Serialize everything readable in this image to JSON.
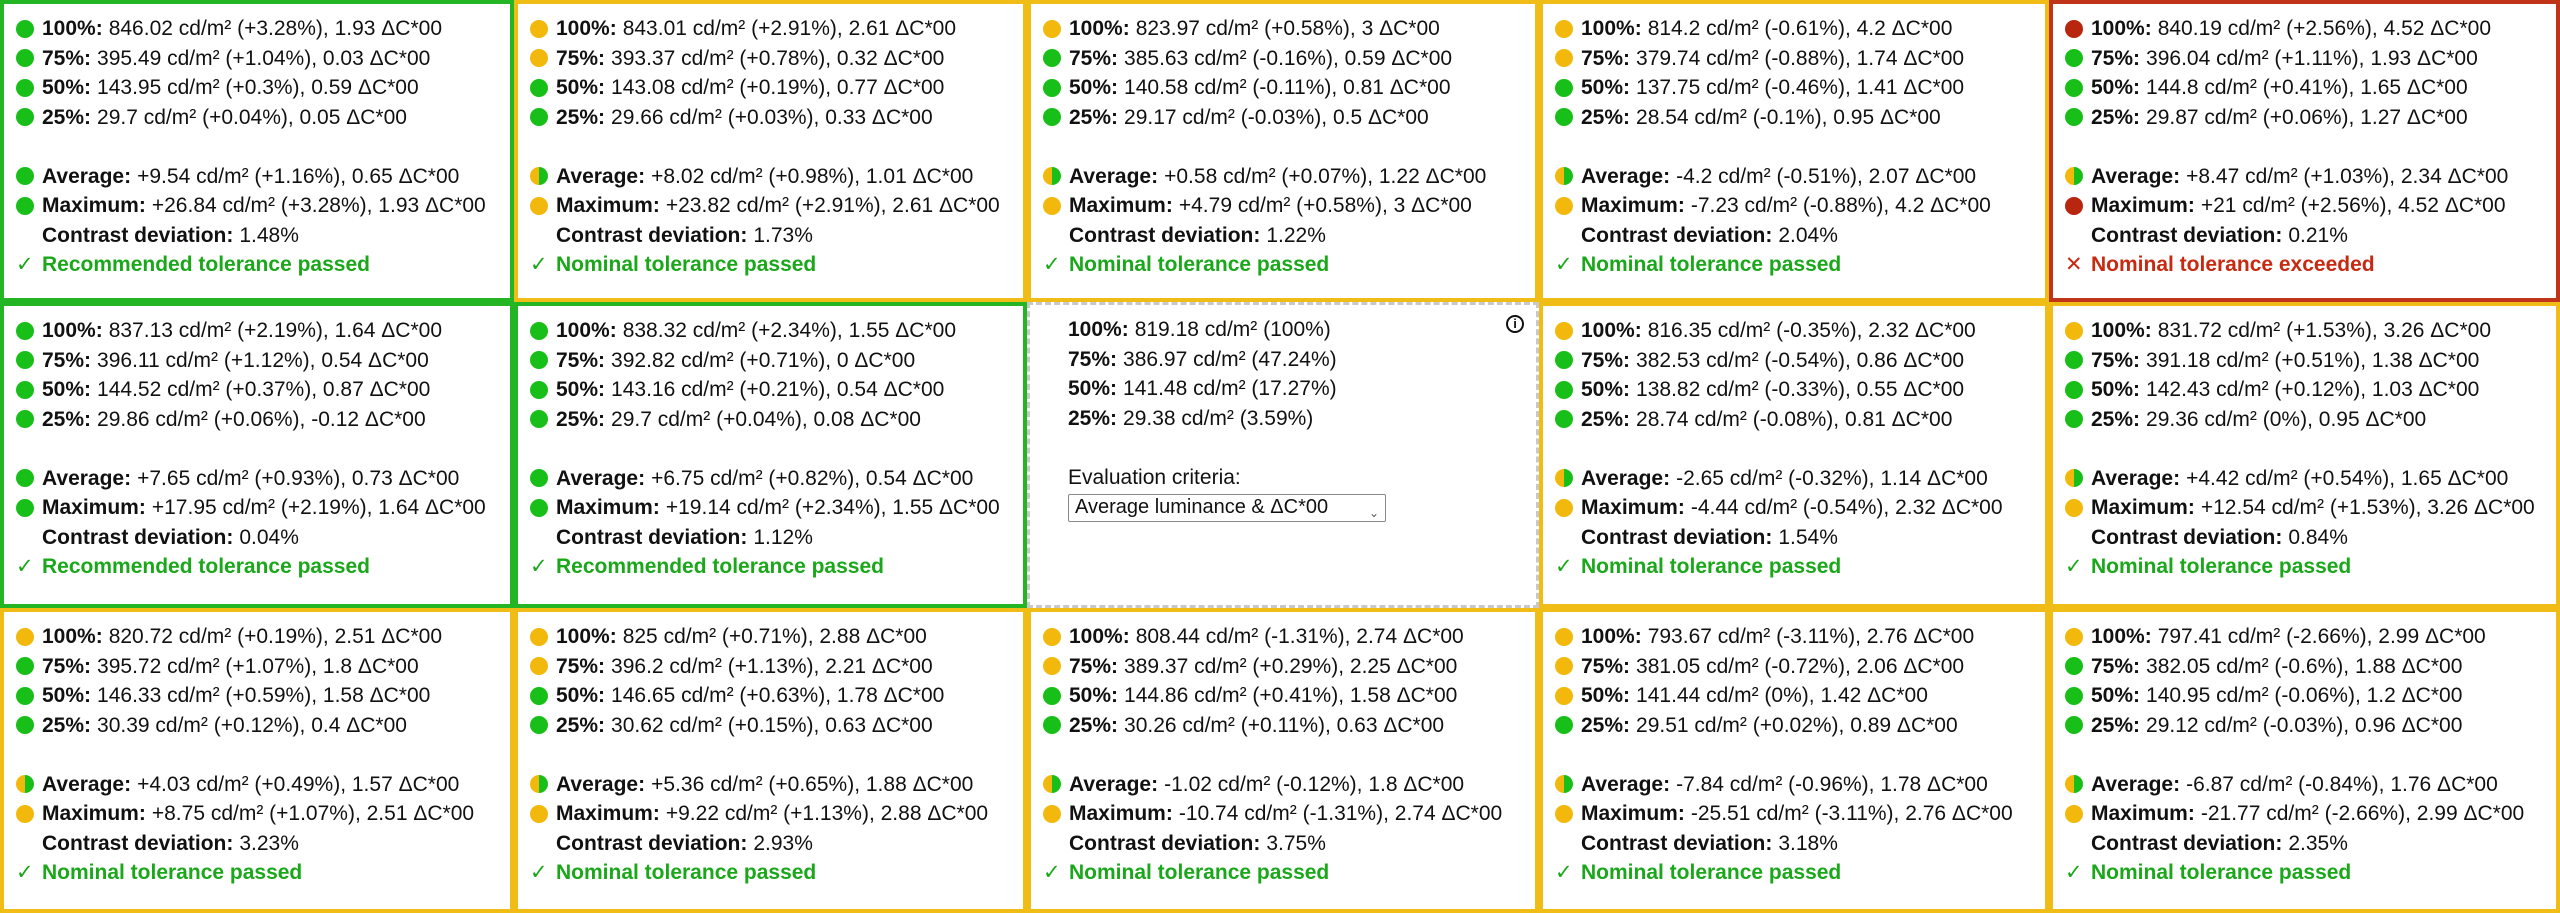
{
  "labels": {
    "p100": "100%:",
    "p75": "75%:",
    "p50": "50%:",
    "p25": "25%:",
    "average": "Average:",
    "maximum": "Maximum:",
    "contrast": "Contrast deviation:"
  },
  "icons": {
    "pass_mark": "✓",
    "fail_mark": "✕",
    "info": "i",
    "chevron": "⌄"
  },
  "colors": {
    "green": "#23b523",
    "yellow": "#efbd16",
    "red": "#c0341a",
    "pass_text": "#1aa81a",
    "fail_text": "#c72a10"
  },
  "reference": {
    "p100": "819.18 cd/m² (100%)",
    "p75": "386.97 cd/m² (47.24%)",
    "p50": "141.48 cd/m² (17.27%)",
    "p25": "29.38 cd/m² (3.59%)",
    "criteria_label": "Evaluation criteria:",
    "criteria_value": "Average luminance & ΔC*00"
  },
  "cells": [
    {
      "border": "green",
      "dots": [
        "green",
        "green",
        "green",
        "green",
        "green",
        "green"
      ],
      "p100": "846.02 cd/m² (+3.28%), 1.93 ΔC*00",
      "p75": "395.49 cd/m² (+1.04%), 0.03 ΔC*00",
      "p50": "143.95 cd/m² (+0.3%), 0.59 ΔC*00",
      "p25": "29.7 cd/m² (+0.04%), 0.05 ΔC*00",
      "average": "+9.54 cd/m² (+1.16%), 0.65 ΔC*00",
      "maximum": "+26.84 cd/m² (+3.28%), 1.93 ΔC*00",
      "contrast": "1.48%",
      "verdict": "Recommended tolerance passed",
      "pass": true
    },
    {
      "border": "yellow",
      "dots": [
        "yellow",
        "yellow",
        "green",
        "green",
        "half",
        "yellow"
      ],
      "p100": "843.01 cd/m² (+2.91%), 2.61 ΔC*00",
      "p75": "393.37 cd/m² (+0.78%), 0.32 ΔC*00",
      "p50": "143.08 cd/m² (+0.19%), 0.77 ΔC*00",
      "p25": "29.66 cd/m² (+0.03%), 0.33 ΔC*00",
      "average": "+8.02 cd/m² (+0.98%), 1.01 ΔC*00",
      "maximum": "+23.82 cd/m² (+2.91%), 2.61 ΔC*00",
      "contrast": "1.73%",
      "verdict": "Nominal tolerance passed",
      "pass": true
    },
    {
      "border": "yellow",
      "dots": [
        "yellow",
        "green",
        "green",
        "green",
        "half",
        "yellow"
      ],
      "p100": "823.97 cd/m² (+0.58%), 3 ΔC*00",
      "p75": "385.63 cd/m² (-0.16%), 0.59 ΔC*00",
      "p50": "140.58 cd/m² (-0.11%), 0.81 ΔC*00",
      "p25": "29.17 cd/m² (-0.03%), 0.5 ΔC*00",
      "average": "+0.58 cd/m² (+0.07%), 1.22 ΔC*00",
      "maximum": "+4.79 cd/m² (+0.58%), 3 ΔC*00",
      "contrast": "1.22%",
      "verdict": "Nominal tolerance passed",
      "pass": true
    },
    {
      "border": "yellow",
      "dots": [
        "yellow",
        "yellow",
        "green",
        "green",
        "half",
        "yellow"
      ],
      "p100": "814.2 cd/m² (-0.61%), 4.2 ΔC*00",
      "p75": "379.74 cd/m² (-0.88%), 1.74 ΔC*00",
      "p50": "137.75 cd/m² (-0.46%), 1.41 ΔC*00",
      "p25": "28.54 cd/m² (-0.1%), 0.95 ΔC*00",
      "average": "-4.2 cd/m² (-0.51%), 2.07 ΔC*00",
      "maximum": "-7.23 cd/m² (-0.88%), 4.2 ΔC*00",
      "contrast": "2.04%",
      "verdict": "Nominal tolerance passed",
      "pass": true
    },
    {
      "border": "red",
      "dots": [
        "red",
        "green",
        "green",
        "green",
        "half",
        "red"
      ],
      "p100": "840.19 cd/m² (+2.56%), 4.52 ΔC*00",
      "p75": "396.04 cd/m² (+1.11%), 1.93 ΔC*00",
      "p50": "144.8 cd/m² (+0.41%), 1.65 ΔC*00",
      "p25": "29.87 cd/m² (+0.06%), 1.27 ΔC*00",
      "average": "+8.47 cd/m² (+1.03%), 2.34 ΔC*00",
      "maximum": "+21 cd/m² (+2.56%), 4.52 ΔC*00",
      "contrast": "0.21%",
      "verdict": "Nominal tolerance exceeded",
      "pass": false
    },
    {
      "border": "green",
      "dots": [
        "green",
        "green",
        "green",
        "green",
        "green",
        "green"
      ],
      "p100": "837.13 cd/m² (+2.19%), 1.64 ΔC*00",
      "p75": "396.11 cd/m² (+1.12%), 0.54 ΔC*00",
      "p50": "144.52 cd/m² (+0.37%), 0.87 ΔC*00",
      "p25": "29.86 cd/m² (+0.06%), -0.12 ΔC*00",
      "average": "+7.65 cd/m² (+0.93%), 0.73 ΔC*00",
      "maximum": "+17.95 cd/m² (+2.19%), 1.64 ΔC*00",
      "contrast": "0.04%",
      "verdict": "Recommended tolerance passed",
      "pass": true
    },
    {
      "border": "green",
      "dots": [
        "green",
        "green",
        "green",
        "green",
        "green",
        "green"
      ],
      "p100": "838.32 cd/m² (+2.34%), 1.55 ΔC*00",
      "p75": "392.82 cd/m² (+0.71%), 0 ΔC*00",
      "p50": "143.16 cd/m² (+0.21%), 0.54 ΔC*00",
      "p25": "29.7 cd/m² (+0.04%), 0.08 ΔC*00",
      "average": "+6.75 cd/m² (+0.82%), 0.54 ΔC*00",
      "maximum": "+19.14 cd/m² (+2.34%), 1.55 ΔC*00",
      "contrast": "1.12%",
      "verdict": "Recommended tolerance passed",
      "pass": true
    },
    {
      "reference": true
    },
    {
      "border": "yellow",
      "dots": [
        "yellow",
        "green",
        "green",
        "green",
        "half",
        "yellow"
      ],
      "p100": "816.35 cd/m² (-0.35%), 2.32 ΔC*00",
      "p75": "382.53 cd/m² (-0.54%), 0.86 ΔC*00",
      "p50": "138.82 cd/m² (-0.33%), 0.55 ΔC*00",
      "p25": "28.74 cd/m² (-0.08%), 0.81 ΔC*00",
      "average": "-2.65 cd/m² (-0.32%), 1.14 ΔC*00",
      "maximum": "-4.44 cd/m² (-0.54%), 2.32 ΔC*00",
      "contrast": "1.54%",
      "verdict": "Nominal tolerance passed",
      "pass": true
    },
    {
      "border": "yellow",
      "dots": [
        "yellow",
        "green",
        "green",
        "green",
        "half",
        "yellow"
      ],
      "p100": "831.72 cd/m² (+1.53%), 3.26 ΔC*00",
      "p75": "391.18 cd/m² (+0.51%), 1.38 ΔC*00",
      "p50": "142.43 cd/m² (+0.12%), 1.03 ΔC*00",
      "p25": "29.36 cd/m² (0%), 0.95 ΔC*00",
      "average": "+4.42 cd/m² (+0.54%), 1.65 ΔC*00",
      "maximum": "+12.54 cd/m² (+1.53%), 3.26 ΔC*00",
      "contrast": "0.84%",
      "verdict": "Nominal tolerance passed",
      "pass": true
    },
    {
      "border": "yellow",
      "dots": [
        "yellow",
        "green",
        "green",
        "green",
        "half",
        "yellow"
      ],
      "p100": "820.72 cd/m² (+0.19%), 2.51 ΔC*00",
      "p75": "395.72 cd/m² (+1.07%), 1.8 ΔC*00",
      "p50": "146.33 cd/m² (+0.59%), 1.58 ΔC*00",
      "p25": "30.39 cd/m² (+0.12%), 0.4 ΔC*00",
      "average": "+4.03 cd/m² (+0.49%), 1.57 ΔC*00",
      "maximum": "+8.75 cd/m² (+1.07%), 2.51 ΔC*00",
      "contrast": "3.23%",
      "verdict": "Nominal tolerance passed",
      "pass": true
    },
    {
      "border": "yellow",
      "dots": [
        "yellow",
        "yellow",
        "green",
        "green",
        "half",
        "yellow"
      ],
      "p100": "825 cd/m² (+0.71%), 2.88 ΔC*00",
      "p75": "396.2 cd/m² (+1.13%), 2.21 ΔC*00",
      "p50": "146.65 cd/m² (+0.63%), 1.78 ΔC*00",
      "p25": "30.62 cd/m² (+0.15%), 0.63 ΔC*00",
      "average": "+5.36 cd/m² (+0.65%), 1.88 ΔC*00",
      "maximum": "+9.22 cd/m² (+1.13%), 2.88 ΔC*00",
      "contrast": "2.93%",
      "verdict": "Nominal tolerance passed",
      "pass": true
    },
    {
      "border": "yellow",
      "dots": [
        "yellow",
        "yellow",
        "green",
        "green",
        "half",
        "yellow"
      ],
      "p100": "808.44 cd/m² (-1.31%), 2.74 ΔC*00",
      "p75": "389.37 cd/m² (+0.29%), 2.25 ΔC*00",
      "p50": "144.86 cd/m² (+0.41%), 1.58 ΔC*00",
      "p25": "30.26 cd/m² (+0.11%), 0.63 ΔC*00",
      "average": "-1.02 cd/m² (-0.12%), 1.8 ΔC*00",
      "maximum": "-10.74 cd/m² (-1.31%), 2.74 ΔC*00",
      "contrast": "3.75%",
      "verdict": "Nominal tolerance passed",
      "pass": true
    },
    {
      "border": "yellow",
      "dots": [
        "yellow",
        "yellow",
        "yellow",
        "green",
        "half",
        "yellow"
      ],
      "p100": "793.67 cd/m² (-3.11%), 2.76 ΔC*00",
      "p75": "381.05 cd/m² (-0.72%), 2.06 ΔC*00",
      "p50": "141.44 cd/m² (0%), 1.42 ΔC*00",
      "p25": "29.51 cd/m² (+0.02%), 0.89 ΔC*00",
      "average": "-7.84 cd/m² (-0.96%), 1.78 ΔC*00",
      "maximum": "-25.51 cd/m² (-3.11%), 2.76 ΔC*00",
      "contrast": "3.18%",
      "verdict": "Nominal tolerance passed",
      "pass": true
    },
    {
      "border": "yellow",
      "dots": [
        "yellow",
        "green",
        "green",
        "green",
        "half",
        "yellow"
      ],
      "p100": "797.41 cd/m² (-2.66%), 2.99 ΔC*00",
      "p75": "382.05 cd/m² (-0.6%), 1.88 ΔC*00",
      "p50": "140.95 cd/m² (-0.06%), 1.2 ΔC*00",
      "p25": "29.12 cd/m² (-0.03%), 0.96 ΔC*00",
      "average": "-6.87 cd/m² (-0.84%), 1.76 ΔC*00",
      "maximum": "-21.77 cd/m² (-2.66%), 2.99 ΔC*00",
      "contrast": "2.35%",
      "verdict": "Nominal tolerance passed",
      "pass": true
    }
  ]
}
